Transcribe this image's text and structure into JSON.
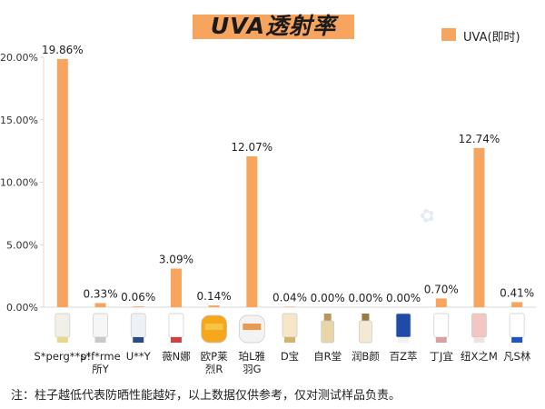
{
  "title": "UVA透射率",
  "legend_label": "UVA(即时)",
  "footnote": "注：柱子越低代表防晒性能越好，以上数据仅供参考，仅对测试样品负责。",
  "colors": {
    "bar": "#f7a45f",
    "axis": "#d9d9d9",
    "grid": "#e8e8e8"
  },
  "chart_data": {
    "type": "bar",
    "title": "UVA透射率",
    "xlabel": "",
    "ylabel": "",
    "ylim": [
      0,
      20
    ],
    "yticks": [
      "0.00%",
      "5.00%",
      "10.00%",
      "15.00%",
      "20.00%"
    ],
    "legend": "top-right",
    "grid": false,
    "series": [
      {
        "name": "UVA(即时)",
        "categories": [
          "S*perg**p!",
          "s*f*rme所Y",
          "U**Y",
          "薇N娜",
          "欧P莱烈R",
          "珀L雅羽G",
          "D宝",
          "自R堂",
          "润B颜",
          "百Z萃",
          "丁J宜",
          "纽X之M",
          "凡S林"
        ],
        "values": [
          19.86,
          0.33,
          0.06,
          3.09,
          0.14,
          12.07,
          0.04,
          0.0,
          0.0,
          0.0,
          0.7,
          12.74,
          0.41
        ],
        "data_labels": [
          "19.86%",
          "0.33%",
          "0.06%",
          "3.09%",
          "0.14%",
          "12.07%",
          "0.04%",
          "0.00%",
          "0.00%",
          "0.00%",
          "0.70%",
          "12.74%",
          "0.41%"
        ]
      }
    ],
    "category_lines": [
      [
        "S*perg**p!"
      ],
      [
        "s*f*rme",
        "所Y"
      ],
      [
        "U**Y"
      ],
      [
        "薇N娜"
      ],
      [
        "欧P莱",
        "烈R"
      ],
      [
        "珀L雅",
        "羽G"
      ],
      [
        "D宝"
      ],
      [
        "自R堂"
      ],
      [
        "润B颜"
      ],
      [
        "百Z萃"
      ],
      [
        "丁J宜"
      ],
      [
        "纽X之M"
      ],
      [
        "凡S林"
      ]
    ],
    "product_icons": [
      {
        "icon": "tube-icon",
        "body": "#f2f0e6",
        "cap": "#e7d88a"
      },
      {
        "icon": "tube-icon",
        "body": "#f6f6f6",
        "cap": "#c8c8c8"
      },
      {
        "icon": "tube-icon",
        "body": "#eef1f6",
        "cap": "#2a4a8a"
      },
      {
        "icon": "tube-icon",
        "body": "#ffffff",
        "cap": "#d24040"
      },
      {
        "icon": "round-bottle-icon",
        "body": "#f6a81c",
        "cap": "#f6c84a"
      },
      {
        "icon": "round-bottle-icon",
        "body": "#f3f3f3",
        "cap": "#e58b2e"
      },
      {
        "icon": "tube-icon",
        "body": "#f5e7c8",
        "cap": "#d7b26a"
      },
      {
        "icon": "bottle-icon",
        "body": "#e9d6a8",
        "cap": "#b8975a"
      },
      {
        "icon": "bottle-icon",
        "body": "#f4ead3",
        "cap": "#9b7a40"
      },
      {
        "icon": "tube-icon",
        "body": "#1f4aa8",
        "cap": "#f2f2f2"
      },
      {
        "icon": "tube-icon",
        "body": "#ffffff",
        "cap": "#d8a0a0"
      },
      {
        "icon": "tube-icon",
        "body": "#f2c7c3",
        "cap": "#efe2e0"
      },
      {
        "icon": "tube-icon",
        "body": "#ffffff",
        "cap": "#1d55c8"
      }
    ]
  }
}
